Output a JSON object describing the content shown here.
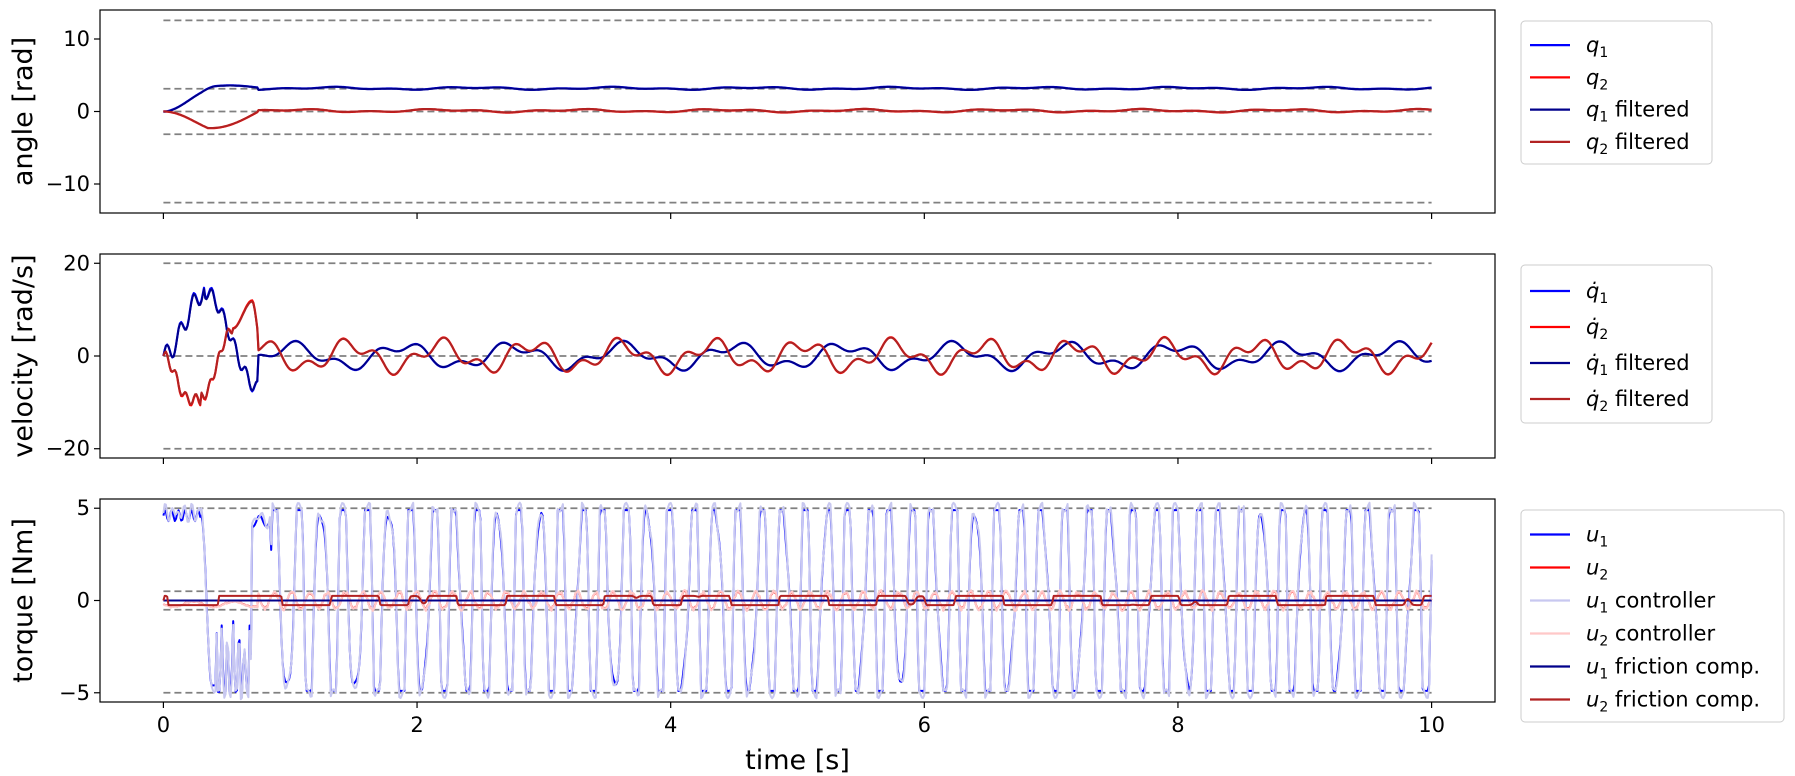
{
  "chart_data": [
    {
      "type": "line",
      "ylabel": "angle [rad]",
      "xlim": [
        -0.5,
        10.5
      ],
      "ylim": [
        -14,
        14
      ],
      "yticks": [
        -10,
        0,
        10
      ],
      "xticks": [
        0,
        2,
        4,
        6,
        8,
        10
      ],
      "limit_lines": [
        12.57,
        3.14,
        0,
        -3.14,
        -12.57
      ],
      "legend_position": "right",
      "series": [
        {
          "name": "q",
          "sub": "1",
          "suffix": "",
          "color": "#0000ff",
          "gen": "q1"
        },
        {
          "name": "q",
          "sub": "2",
          "suffix": "",
          "color": "#ff0000",
          "gen": "q2"
        },
        {
          "name": "q",
          "sub": "1",
          "suffix": " filtered",
          "color": "#00008b",
          "gen": "q1f"
        },
        {
          "name": "q",
          "sub": "2",
          "suffix": " filtered",
          "color": "#b22222",
          "gen": "q2f"
        }
      ]
    },
    {
      "type": "line",
      "ylabel": "velocity [rad/s]",
      "xlim": [
        -0.5,
        10.5
      ],
      "ylim": [
        -22,
        22
      ],
      "yticks": [
        -20,
        0,
        20
      ],
      "xticks": [
        0,
        2,
        4,
        6,
        8,
        10
      ],
      "limit_lines": [
        20,
        0,
        -20
      ],
      "legend_position": "right",
      "series": [
        {
          "name": "q̇",
          "sub": "1",
          "suffix": "",
          "color": "#0000ff",
          "gen": "v1"
        },
        {
          "name": "q̇",
          "sub": "2",
          "suffix": "",
          "color": "#ff0000",
          "gen": "v2"
        },
        {
          "name": "q̇",
          "sub": "1",
          "suffix": " filtered",
          "color": "#00008b",
          "gen": "v1f"
        },
        {
          "name": "q̇",
          "sub": "2",
          "suffix": " filtered",
          "color": "#b22222",
          "gen": "v2f"
        }
      ]
    },
    {
      "type": "line",
      "ylabel": "torque [Nm]",
      "xlabel": "time [s]",
      "xlim": [
        -0.5,
        10.5
      ],
      "ylim": [
        -5.5,
        5.5
      ],
      "yticks": [
        -5,
        0,
        5
      ],
      "xticks": [
        0,
        2,
        4,
        6,
        8,
        10
      ],
      "limit_lines": [
        5,
        0.5,
        -0.5,
        -5
      ],
      "legend_position": "right",
      "series": [
        {
          "name": "u",
          "sub": "1",
          "suffix": "",
          "color": "#0000ff",
          "gen": "u1"
        },
        {
          "name": "u",
          "sub": "2",
          "suffix": "",
          "color": "#ff0000",
          "gen": "u2"
        },
        {
          "name": "u",
          "sub": "1",
          "suffix": " controller",
          "color": "#c8c8f0",
          "gen": "u1c"
        },
        {
          "name": "u",
          "sub": "2",
          "suffix": " controller",
          "color": "#ffc8c8",
          "gen": "u2c"
        },
        {
          "name": "u",
          "sub": "1",
          "suffix": " friction comp.",
          "color": "#00008b",
          "gen": "u1fc"
        },
        {
          "name": "u",
          "sub": "2",
          "suffix": " friction comp.",
          "color": "#b22222",
          "gen": "u2fc"
        }
      ]
    }
  ]
}
